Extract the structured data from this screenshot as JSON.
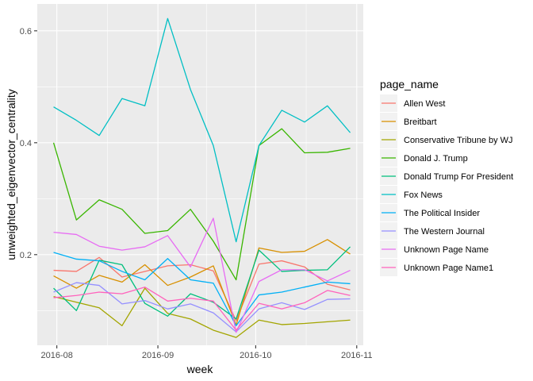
{
  "chart_data": {
    "type": "line",
    "title": "",
    "xlabel": "week",
    "ylabel": "unweighted_eigenvector_centrality",
    "x_ticks": [
      "2016-08",
      "2016-09",
      "2016-10",
      "2016-11"
    ],
    "x_tick_dates": [
      "2016-08-01",
      "2016-09-01",
      "2016-10-01",
      "2016-11-01"
    ],
    "y_ticks": [
      "0.2",
      "0.4",
      "0.6"
    ],
    "y_tick_values": [
      0.2,
      0.4,
      0.6
    ],
    "xlim": [
      "2016-07-26",
      "2016-11-03"
    ],
    "ylim": [
      0.038,
      0.648
    ],
    "grid": true,
    "legend_title": "page_name",
    "legend_position": "right",
    "x": [
      "2016-07-31",
      "2016-08-07",
      "2016-08-14",
      "2016-08-21",
      "2016-08-28",
      "2016-09-04",
      "2016-09-11",
      "2016-09-18",
      "2016-09-25",
      "2016-10-02",
      "2016-10-09",
      "2016-10-16",
      "2016-10-23",
      "2016-10-30"
    ],
    "series": [
      {
        "name": "Allen West",
        "color": "#F8766D",
        "values": [
          0.172,
          0.17,
          0.195,
          0.16,
          0.17,
          0.18,
          0.182,
          0.171,
          0.082,
          0.183,
          0.189,
          0.178,
          0.147,
          0.137
        ]
      },
      {
        "name": "Breitbart",
        "color": "#D89000",
        "values": [
          0.162,
          0.14,
          0.163,
          0.151,
          0.182,
          0.145,
          0.16,
          0.18,
          0.074,
          0.212,
          0.204,
          0.206,
          0.227,
          0.201
        ]
      },
      {
        "name": "Conservative Tribune by WJ",
        "color": "#A3A500",
        "values": [
          0.125,
          0.115,
          0.105,
          0.073,
          0.14,
          0.095,
          0.085,
          0.065,
          0.052,
          0.083,
          0.075,
          0.077,
          0.08,
          0.083
        ]
      },
      {
        "name": "Donald J. Trump",
        "color": "#39B600",
        "values": [
          0.4,
          0.262,
          0.298,
          0.281,
          0.238,
          0.243,
          0.281,
          0.224,
          0.155,
          0.395,
          0.425,
          0.382,
          0.383,
          0.39
        ]
      },
      {
        "name": "Donald Trump For President",
        "color": "#00BF7D",
        "values": [
          0.14,
          0.1,
          0.19,
          0.182,
          0.113,
          0.09,
          0.13,
          0.115,
          0.085,
          0.208,
          0.17,
          0.172,
          0.173,
          0.214
        ]
      },
      {
        "name": "Fox News",
        "color": "#00BFC4",
        "values": [
          0.464,
          0.44,
          0.413,
          0.479,
          0.466,
          0.622,
          0.495,
          0.395,
          0.223,
          0.395,
          0.458,
          0.437,
          0.466,
          0.418
        ]
      },
      {
        "name": "The Political Insider",
        "color": "#00B0F6",
        "values": [
          0.204,
          0.192,
          0.189,
          0.17,
          0.155,
          0.193,
          0.155,
          0.149,
          0.073,
          0.128,
          0.133,
          0.142,
          0.151,
          0.148
        ]
      },
      {
        "name": "The Western Journal",
        "color": "#9590FF",
        "values": [
          0.133,
          0.15,
          0.145,
          0.112,
          0.118,
          0.103,
          0.112,
          0.096,
          0.062,
          0.103,
          0.114,
          0.102,
          0.12,
          0.121
        ]
      },
      {
        "name": "Unknown Page Name",
        "color": "#E76BF3",
        "values": [
          0.24,
          0.236,
          0.215,
          0.208,
          0.214,
          0.234,
          0.178,
          0.265,
          0.061,
          0.152,
          0.173,
          0.173,
          0.153,
          0.172
        ]
      },
      {
        "name": "Unknown Page Name1",
        "color": "#FF62BC",
        "values": [
          0.123,
          0.127,
          0.133,
          0.13,
          0.142,
          0.117,
          0.122,
          0.117,
          0.065,
          0.113,
          0.103,
          0.114,
          0.136,
          0.127
        ]
      }
    ]
  }
}
